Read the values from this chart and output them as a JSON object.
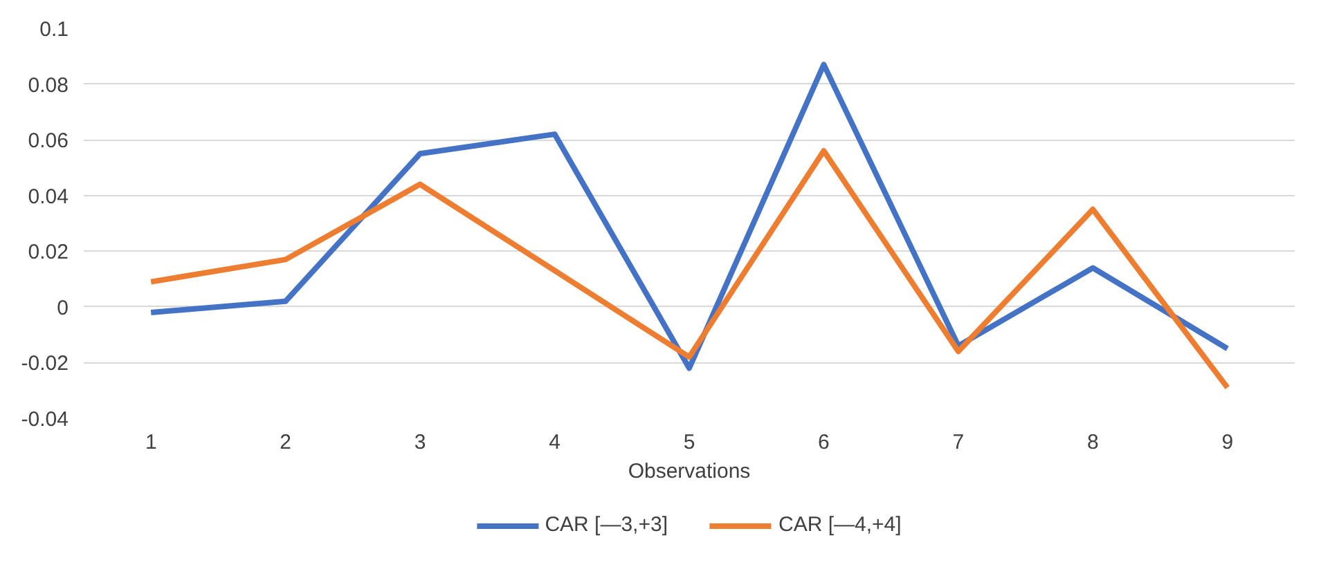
{
  "chart_data": {
    "type": "line",
    "xlabel": "Observations",
    "categories": [
      "1",
      "2",
      "3",
      "4",
      "5",
      "6",
      "7",
      "8",
      "9"
    ],
    "series": [
      {
        "name": "CAR [—3,+3]",
        "color": "#4472c4",
        "values": [
          -0.002,
          0.002,
          0.055,
          0.062,
          -0.022,
          0.087,
          -0.014,
          0.014,
          -0.015
        ]
      },
      {
        "name": "CAR [—4,+4]",
        "color": "#ed7d31",
        "values": [
          0.009,
          0.017,
          0.044,
          0.013,
          -0.018,
          0.056,
          -0.016,
          0.035,
          -0.029
        ]
      }
    ],
    "ylim": [
      -0.04,
      0.1
    ],
    "yticks": [
      -0.04,
      -0.02,
      0,
      0.02,
      0.04,
      0.06,
      0.08,
      0.1
    ],
    "grid": "y",
    "legend": "bottom",
    "marker": "none",
    "line_style": "solid"
  }
}
